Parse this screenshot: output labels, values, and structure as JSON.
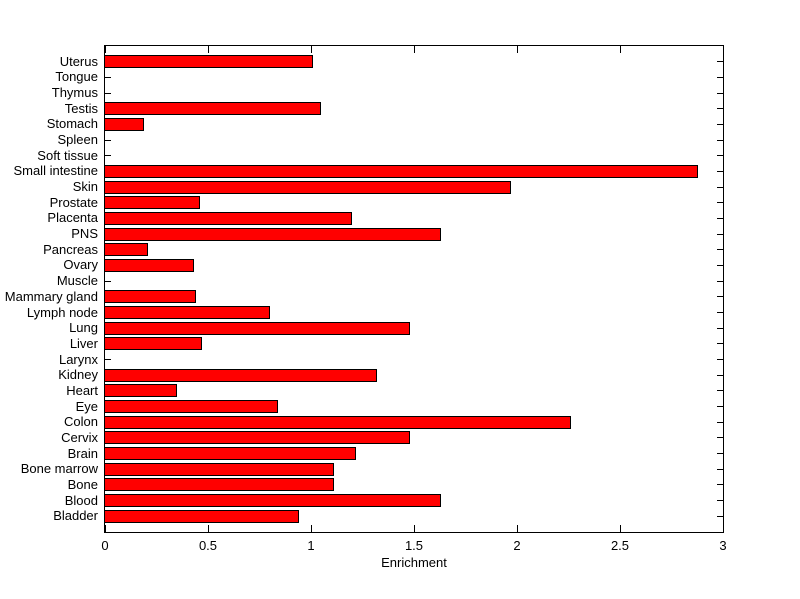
{
  "figure": {
    "background": "#ffffff"
  },
  "chart_data": {
    "type": "bar",
    "orientation": "horizontal",
    "title": "",
    "xlabel": "Enrichment",
    "ylabel": "",
    "xlim": [
      0,
      3
    ],
    "xticks": [
      0,
      0.5,
      1,
      1.5,
      2,
      2.5,
      3
    ],
    "xtick_labels": [
      "0",
      "0.5",
      "1",
      "1.5",
      "2",
      "2.5",
      "3"
    ],
    "grid": false,
    "legend": "none",
    "bar_color": "#ff0000",
    "bar_edge_color": "#000000",
    "axis_color": "#000000",
    "categories": [
      "Uterus",
      "Tongue",
      "Thymus",
      "Testis",
      "Stomach",
      "Spleen",
      "Soft tissue",
      "Small intestine",
      "Skin",
      "Prostate",
      "Placenta",
      "PNS",
      "Pancreas",
      "Ovary",
      "Muscle",
      "Mammary gland",
      "Lymph node",
      "Lung",
      "Liver",
      "Larynx",
      "Kidney",
      "Heart",
      "Eye",
      "Colon",
      "Cervix",
      "Brain",
      "Bone marrow",
      "Bone",
      "Blood",
      "Bladder"
    ],
    "values": [
      1.01,
      0,
      0,
      1.05,
      0.19,
      0,
      0,
      2.88,
      1.97,
      0.46,
      1.2,
      1.63,
      0.21,
      0.43,
      0,
      0.44,
      0.8,
      1.48,
      0.47,
      0,
      1.32,
      0.35,
      0.84,
      2.26,
      1.48,
      1.22,
      1.11,
      1.11,
      1.63,
      0.94
    ]
  }
}
